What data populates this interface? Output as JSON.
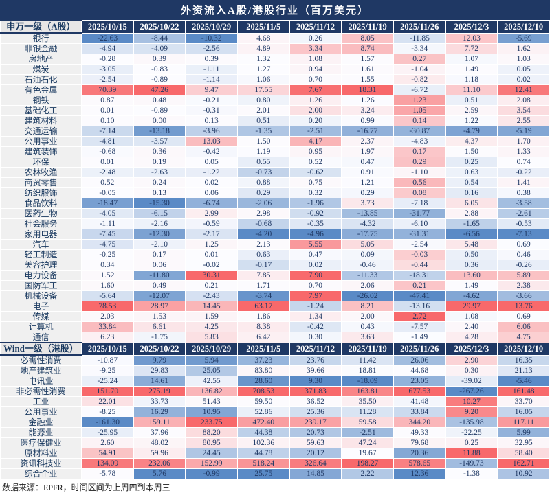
{
  "title": "外资流入A股/港股行业（百万美元）",
  "footer": "数据来源：EPFR，时间区间为上周四到本周三",
  "palette": {
    "scale_min_blue": "#5A8AC6",
    "scale_mid_white": "#FCFCFF",
    "scale_max_red": "#F8696B",
    "header_bg": "#1F3864",
    "header_text": "#FFFFFF",
    "label_header_bg": "#E7E6E6",
    "label_bg": "#F0F0F0",
    "text": "#17375E"
  },
  "chart_data": [
    {
      "type": "heatmap",
      "section_label": "申万一级（A股）",
      "columns": [
        "2025/10/15",
        "2025/10/22",
        "2025/10/29",
        "2025/11/5",
        "2025/11/12",
        "2025/11/19",
        "2025/11/26",
        "2025/12/3",
        "2025/12/10"
      ],
      "color_rule": "per-column 3-color scale: min=blue, median=white, max=red",
      "rows": [
        {
          "label": "银行",
          "values": [
            -22.63,
            -8.44,
            -10.32,
            4.68,
            0.26,
            8.05,
            -11.85,
            12.03,
            -5.69
          ]
        },
        {
          "label": "非银金融",
          "values": [
            -4.94,
            -4.09,
            -2.56,
            4.89,
            3.34,
            8.74,
            -3.34,
            7.72,
            1.62
          ]
        },
        {
          "label": "房地产",
          "values": [
            -0.28,
            0.39,
            0.39,
            1.32,
            1.08,
            1.57,
            0.27,
            1.07,
            1.03
          ]
        },
        {
          "label": "煤炭",
          "values": [
            -3.05,
            -0.83,
            -1.11,
            1.27,
            0.94,
            1.61,
            -1.04,
            1.49,
            0.05
          ]
        },
        {
          "label": "石油石化",
          "values": [
            -2.54,
            -0.89,
            -1.14,
            1.06,
            0.7,
            1.55,
            -0.82,
            1.18,
            0.02
          ]
        },
        {
          "label": "有色金属",
          "values": [
            70.39,
            47.26,
            9.47,
            17.55,
            7.67,
            18.31,
            -6.72,
            11.1,
            12.41
          ]
        },
        {
          "label": "钢铁",
          "values": [
            0.87,
            0.48,
            -0.21,
            0.8,
            1.26,
            1.26,
            1.23,
            0.51,
            2.08
          ]
        },
        {
          "label": "基础化工",
          "values": [
            0.01,
            -0.89,
            -0.31,
            2.01,
            2.0,
            3.24,
            1.05,
            2.59,
            3.54
          ]
        },
        {
          "label": "建筑材料",
          "values": [
            0.1,
            0.0,
            0.13,
            0.51,
            0.2,
            0.99,
            0.14,
            1.22,
            2.55
          ]
        },
        {
          "label": "交通运输",
          "values": [
            -7.14,
            -13.18,
            -3.96,
            -1.35,
            -2.51,
            -16.77,
            -30.87,
            -4.79,
            -5.19
          ]
        },
        {
          "label": "公用事业",
          "values": [
            -4.81,
            -3.57,
            13.03,
            1.5,
            4.17,
            2.37,
            -4.83,
            4.37,
            1.7
          ]
        },
        {
          "label": "建筑装饰",
          "values": [
            -0.68,
            0.36,
            -0.42,
            1.19,
            0.95,
            1.97,
            0.17,
            1.5,
            1.33
          ]
        },
        {
          "label": "环保",
          "values": [
            0.01,
            0.19,
            0.05,
            0.55,
            0.52,
            0.47,
            0.29,
            0.25,
            0.74
          ]
        },
        {
          "label": "农林牧渔",
          "values": [
            -2.48,
            -2.63,
            -1.22,
            -0.73,
            -0.62,
            0.91,
            -1.1,
            0.63,
            -0.22
          ]
        },
        {
          "label": "商贸零售",
          "values": [
            0.52,
            0.24,
            0.02,
            0.88,
            0.75,
            1.21,
            0.56,
            0.54,
            1.41
          ]
        },
        {
          "label": "纺织服饰",
          "values": [
            -0.05,
            0.13,
            0.06,
            0.29,
            0.32,
            0.29,
            0.08,
            0.16,
            0.38
          ]
        },
        {
          "label": "食品饮料",
          "values": [
            -18.47,
            -15.3,
            -6.74,
            -2.06,
            -1.96,
            3.73,
            -7.18,
            6.05,
            -3.58
          ]
        },
        {
          "label": "医药生物",
          "values": [
            -4.05,
            -6.15,
            2.99,
            2.98,
            -0.92,
            -13.85,
            -31.77,
            2.88,
            -2.61
          ]
        },
        {
          "label": "社会服务",
          "values": [
            -1.11,
            -2.16,
            -0.59,
            -0.68,
            -0.35,
            -4.32,
            -6.1,
            -1.65,
            -0.53
          ]
        },
        {
          "label": "家用电器",
          "values": [
            -7.45,
            -12.3,
            -2.17,
            -4.2,
            -4.96,
            -17.75,
            -31.31,
            -6.56,
            -7.13
          ]
        },
        {
          "label": "汽车",
          "values": [
            -4.75,
            -2.1,
            1.25,
            2.13,
            5.55,
            5.05,
            -2.54,
            5.48,
            0.69
          ]
        },
        {
          "label": "轻工制造",
          "values": [
            -0.25,
            0.17,
            0.01,
            0.63,
            0.47,
            0.09,
            -0.03,
            0.5,
            0.46
          ]
        },
        {
          "label": "美容护理",
          "values": [
            0.34,
            0.06,
            -0.02,
            -0.17,
            0.02,
            -0.46,
            -0.44,
            0.36,
            -0.26
          ]
        },
        {
          "label": "电力设备",
          "values": [
            1.52,
            -11.8,
            30.31,
            7.85,
            7.9,
            -11.33,
            -18.31,
            13.6,
            5.89
          ]
        },
        {
          "label": "国防军工",
          "values": [
            1.6,
            0.49,
            0.21,
            1.71,
            0.7,
            2.06,
            0.21,
            1.49,
            2.38
          ]
        },
        {
          "label": "机械设备",
          "values": [
            -5.64,
            -12.07,
            -2.43,
            -3.74,
            7.97,
            -26.02,
            -47.41,
            -4.62,
            -3.66
          ]
        },
        {
          "label": "电子",
          "values": [
            78.53,
            28.97,
            14.45,
            63.17,
            -1.24,
            8.21,
            -13.16,
            29.97,
            13.76
          ]
        },
        {
          "label": "传媒",
          "values": [
            2.03,
            1.53,
            1.59,
            1.86,
            1.34,
            2.0,
            2.72,
            1.08,
            0.69
          ]
        },
        {
          "label": "计算机",
          "values": [
            33.84,
            6.61,
            4.25,
            8.38,
            -0.42,
            0.43,
            -7.57,
            2.4,
            6.06
          ]
        },
        {
          "label": "通信",
          "values": [
            6.23,
            -1.75,
            5.83,
            6.42,
            0.3,
            3.63,
            -1.49,
            4.28,
            4.75
          ]
        }
      ]
    },
    {
      "type": "heatmap",
      "section_label": "Wind一级（港股）",
      "columns": [
        "2025/10/15",
        "2025/10/22",
        "2025/10/29",
        "2025/11/5",
        "2025/11/12",
        "2025/11/19",
        "2025/11/26",
        "2025/12/3",
        "2025/12/10"
      ],
      "color_rule": "per-column 3-color scale: min=blue, median=white, max=red",
      "rows": [
        {
          "label": "必需性消费",
          "values": [
            -10.87,
            9.79,
            5.94,
            37.23,
            23.76,
            11.42,
            26.06,
            2.9,
            16.35
          ]
        },
        {
          "label": "地产建筑业",
          "values": [
            -9.25,
            29.83,
            25.05,
            83.8,
            39.66,
            18.81,
            44.68,
            0.3,
            21.13
          ]
        },
        {
          "label": "电讯业",
          "values": [
            -25.24,
            14.61,
            42.55,
            28.6,
            9.3,
            -18.09,
            23.05,
            -39.02,
            -5.46
          ]
        },
        {
          "label": "非必需性消费",
          "values": [
            151.7,
            275.19,
            136.82,
            708.53,
            371.83,
            163.81,
            677.53,
            -267.26,
            161.48
          ]
        },
        {
          "label": "工业",
          "values": [
            22.01,
            33.73,
            51.43,
            59.5,
            36.52,
            35.5,
            41.48,
            10.27,
            33.7
          ]
        },
        {
          "label": "公用事业",
          "values": [
            -8.25,
            16.29,
            10.95,
            52.86,
            25.36,
            11.28,
            33.84,
            9.2,
            16.05
          ]
        },
        {
          "label": "金融业",
          "values": [
            -161.3,
            159.11,
            233.75,
            472.4,
            239.17,
            59.58,
            344.2,
            -135.98,
            117.11
          ]
        },
        {
          "label": "能源业",
          "values": [
            -25.95,
            37.96,
            88.2,
            44.38,
            20.73,
            -2.51,
            49.33,
            -22.25,
            5.99
          ]
        },
        {
          "label": "医疗保健业",
          "values": [
            2.6,
            48.02,
            80.95,
            102.36,
            59.63,
            47.24,
            79.68,
            0.25,
            32.95
          ]
        },
        {
          "label": "原材料业",
          "values": [
            54.91,
            59.96,
            24.45,
            44.78,
            20.12,
            19.67,
            20.36,
            11.88,
            58.4
          ]
        },
        {
          "label": "资讯科技业",
          "values": [
            134.09,
            232.06,
            152.99,
            518.24,
            326.64,
            198.27,
            578.65,
            -149.73,
            162.71
          ]
        },
        {
          "label": "综合企业",
          "values": [
            -5.78,
            5.76,
            -0.99,
            25.75,
            14.85,
            2.22,
            12.36,
            -1.38,
            10.92
          ]
        }
      ]
    }
  ]
}
